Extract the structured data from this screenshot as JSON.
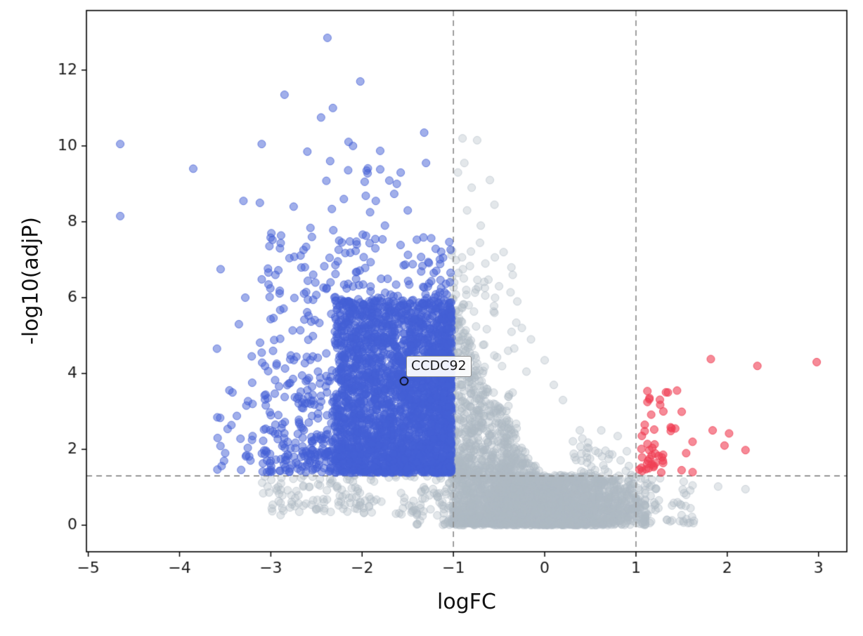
{
  "chart_data": {
    "type": "scatter",
    "subtype": "volcano-plot",
    "title": "",
    "xlabel": "logFC",
    "ylabel": "-log10(adjP)",
    "xlim": [
      -5.02,
      3.31
    ],
    "ylim": [
      -0.7,
      13.57
    ],
    "xticks": [
      -5,
      -4,
      -3,
      -2,
      -1,
      0,
      1,
      2,
      3
    ],
    "xtick_labels": [
      "−5",
      "−4",
      "−3",
      "−2",
      "−1",
      "0",
      "1",
      "2",
      "3"
    ],
    "yticks": [
      0,
      2,
      4,
      6,
      8,
      10,
      12
    ],
    "ytick_labels": [
      "0",
      "2",
      "4",
      "6",
      "8",
      "10",
      "12"
    ],
    "grid": false,
    "legend": null,
    "seed": 11,
    "marker": {
      "radius": 5.5
    },
    "colors": {
      "down": "#4460d6",
      "up": "#f03e54",
      "not_significant": "#aebac4",
      "threshold_line": "#888888",
      "spine": "#000000",
      "tick_text": "#1a1a1a"
    },
    "thresholds": {
      "vlines": [
        -1,
        1
      ],
      "hline": 1.301,
      "style": "dashed"
    },
    "annotation": {
      "label": "CCDC92",
      "x": -1.54,
      "y": 3.8
    },
    "series": [
      {
        "name": "not-significant",
        "fill": "rgba(174,186,196,0.35)",
        "stroke": "rgba(174,186,196,0.55)",
        "clusters": [
          {
            "type": "wedge",
            "count": 2300,
            "xmin": -1.02,
            "xmax": 0.45,
            "ymax0": 6.2,
            "ymax1": 0.5,
            "curve": 1.7,
            "ypow": 2.3,
            "ybase": 0.05
          },
          {
            "type": "box",
            "count": 1700,
            "x": {
              "type": "gauss",
              "mean": 0.05,
              "sd": 0.5,
              "min": -1.4,
              "max": 1.1
            },
            "y": {
              "type": "pow",
              "min": 0.0,
              "max": 1.32,
              "k": 1.5,
              "toward": "min"
            }
          },
          {
            "type": "box",
            "count": 160,
            "x": {
              "type": "uniform",
              "min": -3.1,
              "max": -1.03
            },
            "y": {
              "type": "uniform",
              "min": 0.25,
              "max": 1.33
            }
          },
          {
            "type": "box",
            "count": 130,
            "x": {
              "type": "pow",
              "min": 0.5,
              "max": 1.65,
              "k": 1.6,
              "toward": "min"
            },
            "y": {
              "type": "pow",
              "min": 0.05,
              "max": 1.25,
              "k": 1.6,
              "toward": "min"
            }
          },
          {
            "type": "wedge",
            "count": 150,
            "xmin": 0.3,
            "xmax": 1.05,
            "ymax0": 2.8,
            "ymax1": 1.5,
            "curve": 1.2,
            "ypow": 1.8,
            "ybase": 0.4
          },
          {
            "type": "box",
            "count": 220,
            "x": {
              "type": "pow",
              "min": -1.02,
              "max": -0.3,
              "k": 1.9,
              "toward": "min"
            },
            "y": {
              "type": "pow",
              "min": 1.3,
              "max": 7.5,
              "k": 2.0,
              "toward": "min"
            }
          }
        ],
        "points": [
          [
            -0.9,
            10.2
          ],
          [
            -0.74,
            10.15
          ],
          [
            -0.88,
            9.55
          ],
          [
            -0.6,
            9.1
          ],
          [
            -0.95,
            9.3
          ],
          [
            -0.8,
            8.9
          ],
          [
            -0.55,
            8.45
          ],
          [
            -0.7,
            7.9
          ],
          [
            -0.85,
            8.3
          ],
          [
            -0.45,
            7.2
          ],
          [
            -0.65,
            6.9
          ],
          [
            -0.35,
            6.6
          ],
          [
            -0.5,
            6.3
          ],
          [
            -0.3,
            5.9
          ],
          [
            -0.55,
            5.6
          ],
          [
            -0.25,
            5.2
          ],
          [
            -0.15,
            4.9
          ],
          [
            -0.4,
            4.6
          ],
          [
            0.0,
            4.35
          ],
          [
            -0.2,
            4.05
          ],
          [
            0.1,
            3.7
          ],
          [
            0.2,
            3.3
          ],
          [
            0.62,
            2.5
          ],
          [
            0.8,
            2.35
          ],
          [
            0.9,
            1.95
          ],
          [
            1.62,
            1.05
          ],
          [
            1.9,
            1.02
          ],
          [
            2.2,
            0.95
          ],
          [
            1.55,
            0.8
          ],
          [
            0.7,
            1.75
          ]
        ]
      },
      {
        "name": "down-regulated",
        "fill": "rgba(68,96,214,0.5)",
        "stroke": "rgba(68,96,214,0.7)",
        "clusters": [
          {
            "type": "box",
            "count": 2300,
            "x": {
              "type": "pow",
              "min": -2.3,
              "max": -1.02,
              "k": 1.25,
              "toward": "max"
            },
            "y": {
              "type": "pow",
              "min": 1.38,
              "max": 5.95,
              "k": 1.25,
              "toward": "min"
            }
          },
          {
            "type": "box",
            "count": 650,
            "x": {
              "type": "pow",
              "min": -3.1,
              "max": -1.03,
              "k": 1.5,
              "toward": "max"
            },
            "y": {
              "type": "pow",
              "min": 1.4,
              "max": 7.7,
              "k": 1.9,
              "toward": "min"
            }
          },
          {
            "type": "box",
            "count": 140,
            "x": {
              "type": "gauss",
              "mean": -2.25,
              "sd": 0.5,
              "min": -3.7,
              "max": -1.05
            },
            "y": {
              "type": "pow",
              "min": 1.8,
              "max": 10.3,
              "k": 2.3,
              "toward": "min"
            }
          },
          {
            "type": "box",
            "count": 60,
            "x": {
              "type": "uniform",
              "min": -3.6,
              "max": -2.3
            },
            "y": {
              "type": "pow",
              "min": 1.45,
              "max": 4.4,
              "k": 1.7,
              "toward": "min"
            }
          }
        ],
        "points": [
          [
            -4.65,
            10.05
          ],
          [
            -4.65,
            8.15
          ],
          [
            -3.85,
            9.4
          ],
          [
            -2.38,
            12.85
          ],
          [
            -2.02,
            11.7
          ],
          [
            -2.85,
            11.35
          ],
          [
            -2.32,
            11.0
          ],
          [
            -2.45,
            10.75
          ],
          [
            -1.32,
            10.35
          ],
          [
            -3.1,
            10.05
          ],
          [
            -2.6,
            9.85
          ],
          [
            -2.1,
            10.0
          ],
          [
            -2.35,
            9.6
          ],
          [
            -1.95,
            9.35
          ],
          [
            -1.62,
            9.0
          ],
          [
            -1.3,
            9.55
          ],
          [
            -3.3,
            8.55
          ],
          [
            -3.12,
            8.5
          ],
          [
            -2.75,
            8.4
          ],
          [
            -2.2,
            8.6
          ],
          [
            -1.85,
            8.55
          ],
          [
            -3.55,
            6.75
          ],
          [
            -3.28,
            6.0
          ],
          [
            -3.35,
            5.3
          ],
          [
            -3.42,
            3.5
          ],
          [
            -3.2,
            2.35
          ],
          [
            -3.5,
            1.9
          ],
          [
            -3.0,
            2.9
          ],
          [
            -3.1,
            4.55
          ],
          [
            -2.95,
            6.6
          ],
          [
            -1.5,
            8.3
          ],
          [
            -1.75,
            7.9
          ],
          [
            -2.55,
            7.6
          ],
          [
            -2.9,
            7.3
          ]
        ]
      },
      {
        "name": "up-regulated",
        "fill": "rgba(240,62,84,0.6)",
        "stroke": "rgba(240,62,84,0.8)",
        "clusters": [
          {
            "type": "box",
            "count": 26,
            "x": {
              "type": "pow",
              "min": 1.03,
              "max": 1.3,
              "k": 1.2,
              "toward": "min"
            },
            "y": {
              "type": "pow",
              "min": 1.38,
              "max": 2.2,
              "k": 1.4,
              "toward": "min"
            }
          },
          {
            "type": "box",
            "count": 16,
            "x": {
              "type": "pow",
              "min": 1.05,
              "max": 1.55,
              "k": 1.4,
              "toward": "min"
            },
            "y": {
              "type": "uniform",
              "min": 2.2,
              "max": 3.6
            }
          }
        ],
        "points": [
          [
            1.82,
            4.38
          ],
          [
            2.33,
            4.2
          ],
          [
            2.98,
            4.3
          ],
          [
            1.84,
            2.5
          ],
          [
            2.02,
            2.42
          ],
          [
            1.97,
            2.1
          ],
          [
            2.2,
            1.98
          ],
          [
            1.62,
            2.2
          ],
          [
            1.45,
            3.55
          ],
          [
            1.35,
            3.5
          ],
          [
            1.3,
            3.0
          ],
          [
            1.5,
            1.45
          ],
          [
            1.62,
            1.4
          ],
          [
            1.43,
            2.55
          ],
          [
            1.55,
            1.9
          ]
        ]
      }
    ]
  }
}
